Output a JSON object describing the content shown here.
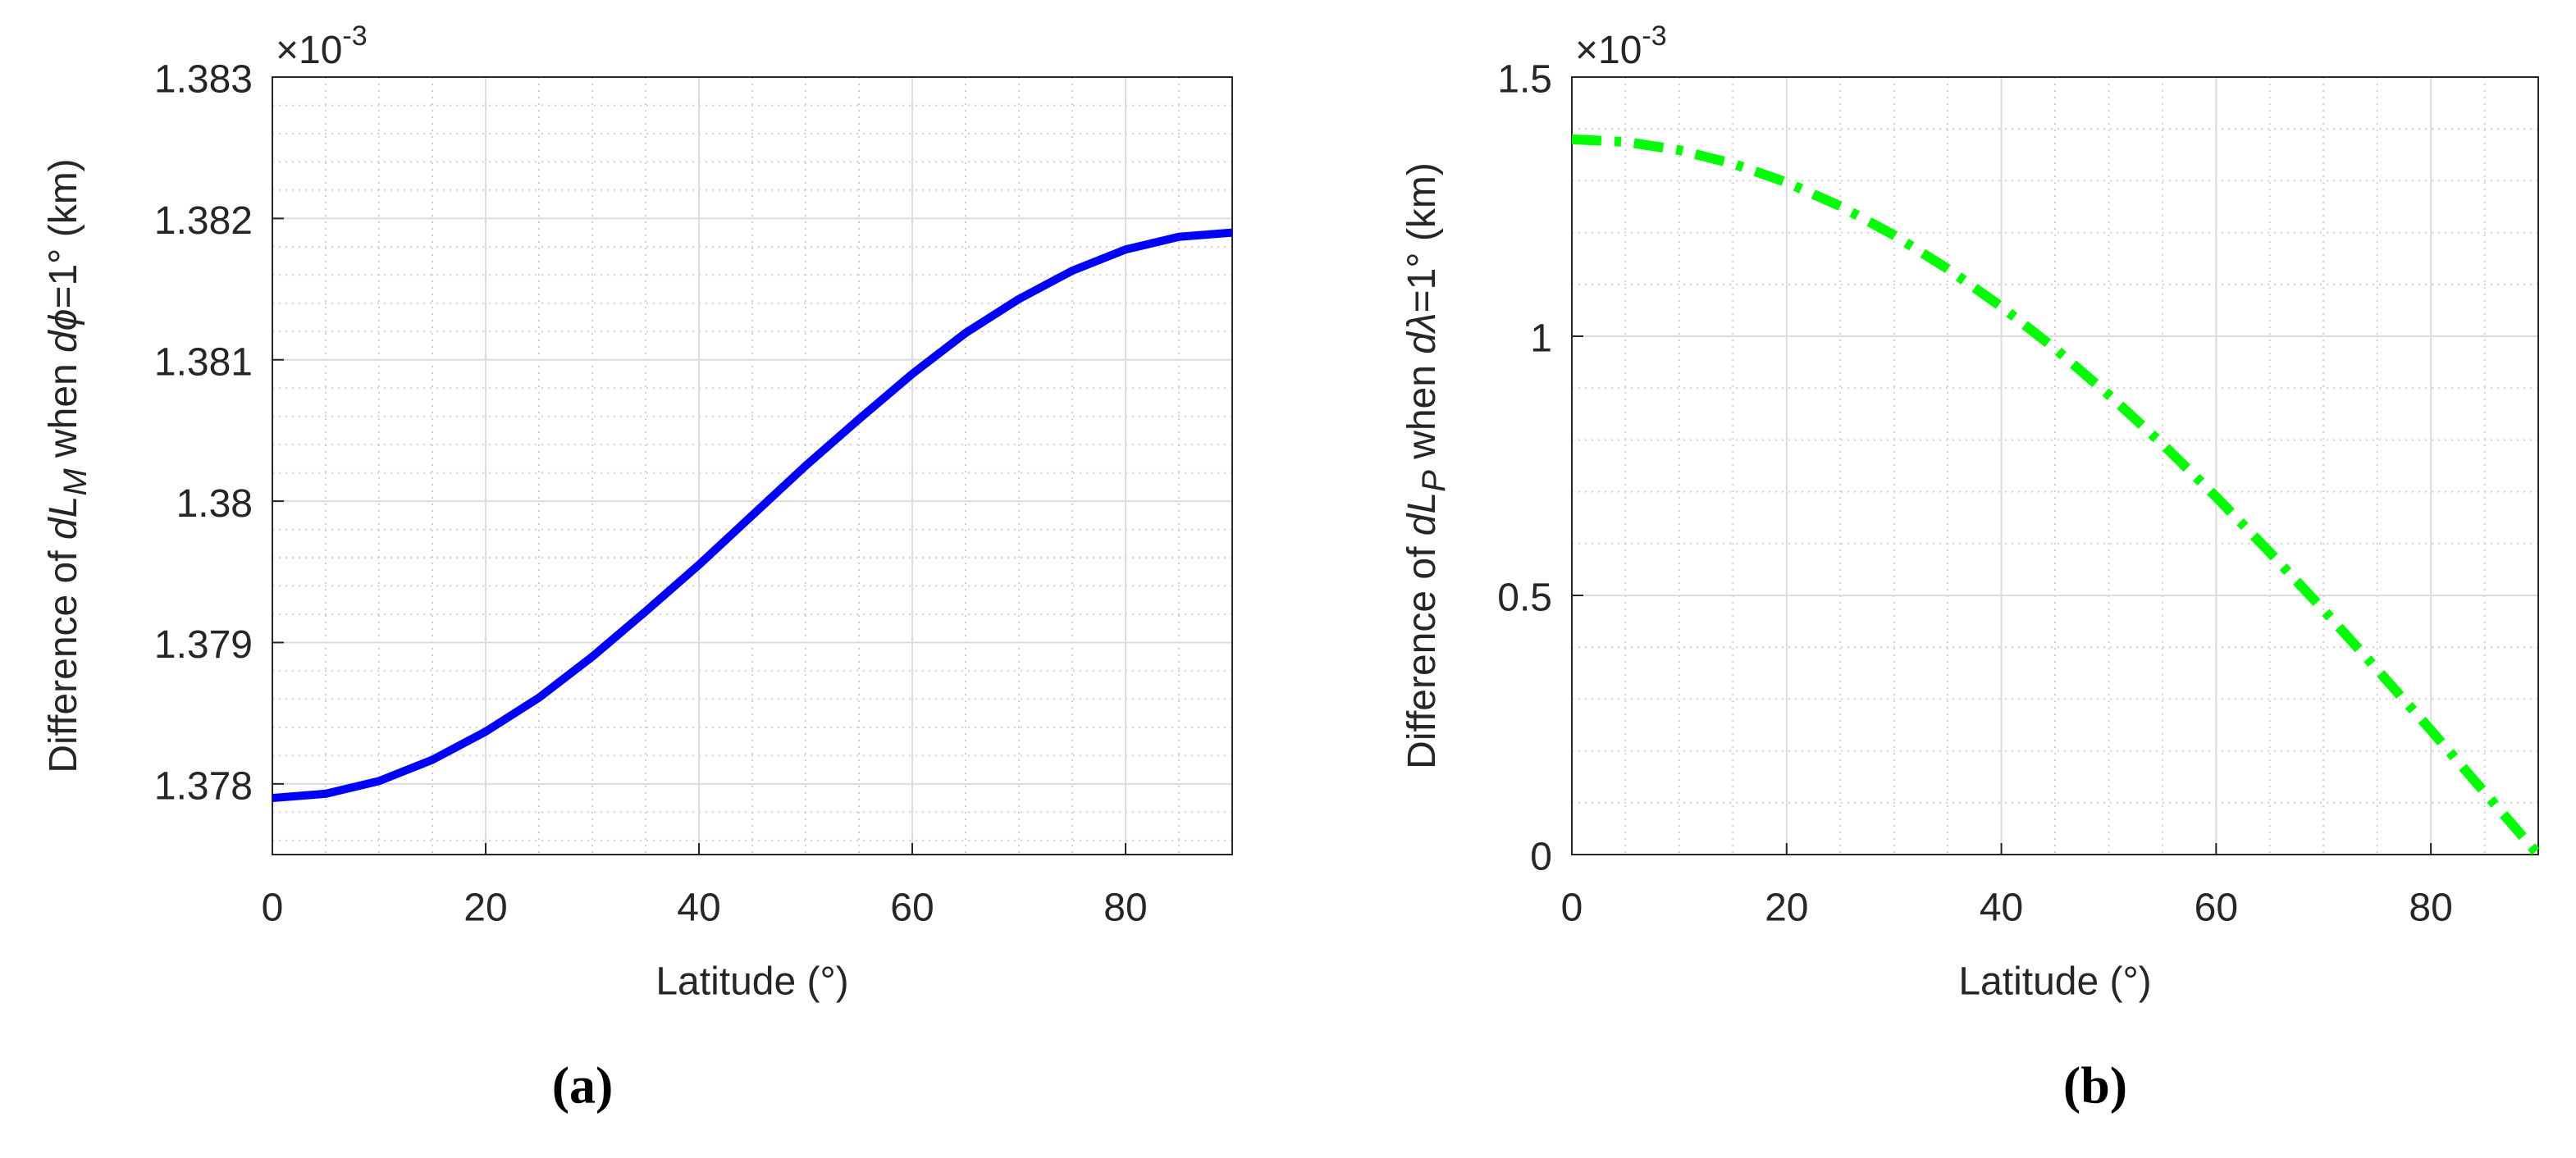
{
  "chart_data": [
    {
      "type": "line",
      "caption": "(a)",
      "xlabel": "Latitude (°)",
      "ylabel": [
        "Difference of ",
        "dL",
        "M",
        "  when ",
        "dϕ",
        "=1° (km)"
      ],
      "exponent": [
        "×10",
        "-3"
      ],
      "x": [
        0,
        5,
        10,
        15,
        20,
        25,
        30,
        35,
        40,
        45,
        50,
        55,
        60,
        65,
        70,
        75,
        80,
        85,
        90
      ],
      "values": [
        1.3779,
        1.37793,
        1.37802,
        1.37817,
        1.37837,
        1.37861,
        1.3789,
        1.37922,
        1.37955,
        1.3799,
        1.38025,
        1.38058,
        1.3809,
        1.38119,
        1.38143,
        1.38163,
        1.38178,
        1.38187,
        1.3819
      ],
      "color": "#0000ff",
      "line_style": "solid",
      "xlim": [
        0,
        90
      ],
      "xticks": [
        0,
        20,
        40,
        60,
        80
      ],
      "ylim": [
        1.3775,
        1.383
      ],
      "yticks": [
        1.378,
        1.379,
        1.38,
        1.381,
        1.382,
        1.383
      ],
      "xminorticks": [
        5,
        10,
        15,
        25,
        30,
        35,
        45,
        50,
        55,
        65,
        70,
        75,
        85
      ],
      "yminorticks": [
        1.3776,
        1.3778,
        1.3782,
        1.3784,
        1.3786,
        1.3788,
        1.3792,
        1.3794,
        1.3796,
        1.3798,
        1.3802,
        1.3804,
        1.3806,
        1.3808,
        1.3812,
        1.3814,
        1.3816,
        1.3818,
        1.3822,
        1.3824,
        1.3826,
        1.3828
      ],
      "grid": true
    },
    {
      "type": "line",
      "caption": "(b)",
      "xlabel": "Latitude (°)",
      "ylabel": [
        "Difference of ",
        "dL",
        "P",
        "  when ",
        "dλ",
        "=1° (km)"
      ],
      "exponent": [
        "×10",
        "-3"
      ],
      "x": [
        0,
        5,
        10,
        15,
        20,
        25,
        30,
        35,
        40,
        45,
        50,
        55,
        60,
        65,
        70,
        75,
        80,
        85,
        90
      ],
      "values": [
        1.38,
        1.375,
        1.359,
        1.333,
        1.297,
        1.251,
        1.195,
        1.13,
        1.057,
        0.976,
        0.887,
        0.792,
        0.69,
        0.583,
        0.472,
        0.357,
        0.24,
        0.12,
        0
      ],
      "color": "#00ff00",
      "line_style": "dashdot",
      "xlim": [
        0,
        90
      ],
      "xticks": [
        0,
        20,
        40,
        60,
        80
      ],
      "ylim": [
        0,
        1.5
      ],
      "yticks": [
        0,
        0.5,
        1,
        1.5
      ],
      "xminorticks": [
        5,
        10,
        15,
        25,
        30,
        35,
        45,
        50,
        55,
        65,
        70,
        75,
        85
      ],
      "yminorticks": [
        0.1,
        0.2,
        0.3,
        0.4,
        0.6,
        0.7,
        0.8,
        0.9,
        1.1,
        1.2,
        1.3,
        1.4
      ],
      "grid": true
    }
  ]
}
